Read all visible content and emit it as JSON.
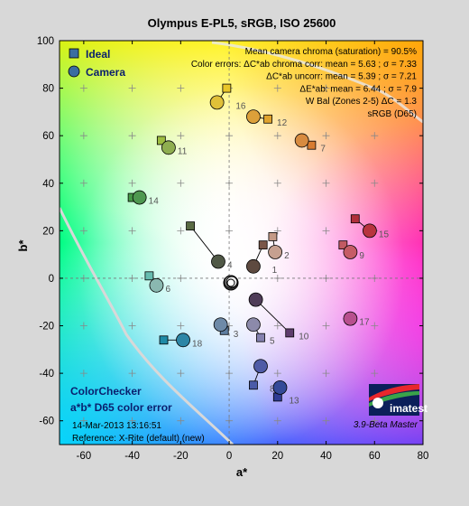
{
  "chart_data": {
    "type": "scatter",
    "title": "Olympus E-PL5, sRGB, ISO 25600",
    "xlabel": "a*",
    "ylabel": "b*",
    "xlim": [
      -70,
      80
    ],
    "ylim": [
      -70,
      100
    ],
    "xticks": [
      -60,
      -40,
      -20,
      0,
      20,
      40,
      60,
      80
    ],
    "yticks": [
      -60,
      -40,
      -20,
      0,
      20,
      40,
      60,
      80,
      100
    ],
    "grid": "crosses",
    "legend": {
      "position": "top-left",
      "ideal_label": "Ideal",
      "camera_label": "Camera"
    },
    "stats": [
      "Mean camera chroma (saturation) = 90.5%",
      "Color errors: ΔC*ab chroma corr:  mean = 5.63 ;  σ = 7.33",
      "ΔC*ab uncorr:  mean = 5.39 ;  σ = 7.21",
      "ΔE*ab:  mean = 6.44 ;  σ = 7.9",
      "W Bal (Zones 2-5) ΔC = 1.3",
      "sRGB (D65)"
    ],
    "patches": [
      {
        "id": "1",
        "ideal": [
          14,
          14
        ],
        "camera": [
          10,
          5
        ],
        "ideal_color": "#7a5648",
        "camera_color": "#5e4a40"
      },
      {
        "id": "2",
        "ideal": [
          18,
          17.5
        ],
        "camera": [
          19,
          11
        ],
        "ideal_color": "#c49a86",
        "camera_color": "#c6a090"
      },
      {
        "id": "3",
        "ideal": [
          -2,
          -22
        ],
        "camera": [
          -3.5,
          -19.5
        ],
        "ideal_color": "#5f7ea0",
        "camera_color": "#6e8aa8"
      },
      {
        "id": "4",
        "ideal": [
          -16,
          22
        ],
        "camera": [
          -4.5,
          7
        ],
        "ideal_color": "#5a6b44",
        "camera_color": "#505846"
      },
      {
        "id": "5",
        "ideal": [
          13,
          -25
        ],
        "camera": [
          10,
          -19.5
        ],
        "ideal_color": "#8480ae",
        "camera_color": "#8c8aaa"
      },
      {
        "id": "6",
        "ideal": [
          -33,
          1
        ],
        "camera": [
          -30,
          -3
        ],
        "ideal_color": "#66bcaf",
        "camera_color": "#8ab8b0"
      },
      {
        "id": "7",
        "ideal": [
          34,
          56
        ],
        "camera": [
          30,
          58
        ],
        "ideal_color": "#d87c30",
        "camera_color": "#d78b40"
      },
      {
        "id": "8",
        "ideal": [
          10,
          -45
        ],
        "camera": [
          13,
          -37
        ],
        "ideal_color": "#4a5ba8",
        "camera_color": "#4f5ba6"
      },
      {
        "id": "9",
        "ideal": [
          47,
          14
        ],
        "camera": [
          50,
          11
        ],
        "ideal_color": "#c25a62",
        "camera_color": "#c65c66"
      },
      {
        "id": "10",
        "ideal": [
          25,
          -23
        ],
        "camera": [
          11,
          -9
        ],
        "ideal_color": "#5e3c6c",
        "camera_color": "#4f3c58"
      },
      {
        "id": "11",
        "ideal": [
          -28,
          58
        ],
        "camera": [
          -25,
          55
        ],
        "ideal_color": "#9dbc40",
        "camera_color": "#8fae50"
      },
      {
        "id": "12",
        "ideal": [
          16,
          67
        ],
        "camera": [
          10,
          68
        ],
        "ideal_color": "#e0a32e",
        "camera_color": "#dca03a"
      },
      {
        "id": "13",
        "ideal": [
          20,
          -50
        ],
        "camera": [
          21,
          -46
        ],
        "ideal_color": "#2f3c94",
        "camera_color": "#344a98"
      },
      {
        "id": "14",
        "ideal": [
          -40,
          34
        ],
        "camera": [
          -37,
          34
        ],
        "ideal_color": "#469848",
        "camera_color": "#4e9850"
      },
      {
        "id": "15",
        "ideal": [
          52,
          25
        ],
        "camera": [
          58,
          20
        ],
        "ideal_color": "#b0303a",
        "camera_color": "#b8343e"
      },
      {
        "id": "16",
        "ideal": [
          -1,
          80
        ],
        "camera": [
          -5,
          74
        ],
        "ideal_color": "#e8c628",
        "camera_color": "#e0c038"
      },
      {
        "id": "17",
        "ideal": [
          50,
          -17
        ],
        "camera": [
          50,
          -17
        ],
        "ideal_color": "#b8508e",
        "camera_color": "#b8508e"
      },
      {
        "id": "18",
        "ideal": [
          -27,
          -26
        ],
        "camera": [
          -19,
          -26
        ],
        "ideal_color": "#1e8aa6",
        "camera_color": "#2c86a6"
      }
    ],
    "annotations": {
      "box_title_1": "ColorChecker",
      "box_title_2": "a*b* D65 color error",
      "date": "14-Mar-2013 13:16:51",
      "reference": "Reference: X-Rite (default) (new)",
      "version": "3.9-Beta  Master",
      "logo": "imatest"
    }
  }
}
